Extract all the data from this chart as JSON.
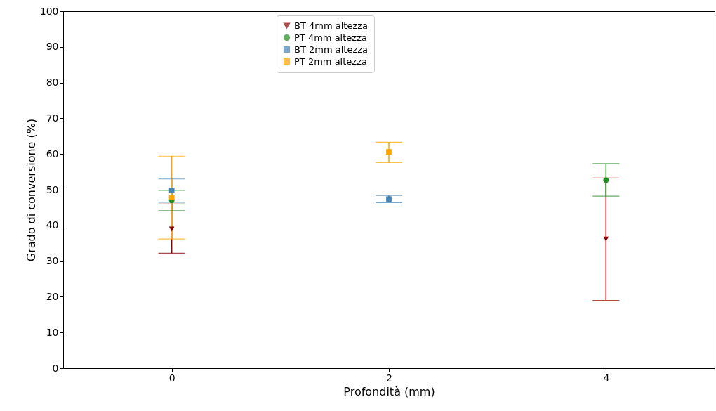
{
  "chart_data": {
    "type": "scatter",
    "xlabel": "Profondità (mm)",
    "ylabel": "Grado di conversione (%)",
    "xlim": [
      -1,
      5
    ],
    "xticks": [
      0,
      2,
      4
    ],
    "ylim": [
      0,
      100
    ],
    "yticks": [
      0,
      10,
      20,
      30,
      40,
      50,
      60,
      70,
      80,
      90,
      100
    ],
    "grid": false,
    "legend": "top",
    "series": [
      {
        "name": "BT 4mm altezza",
        "color": "#8b0000",
        "marker": "triangle",
        "x": [
          0,
          4
        ],
        "values": [
          39,
          36.2
        ],
        "errors": [
          [
            32.2,
            46.0
          ],
          [
            19,
            53.3
          ]
        ]
      },
      {
        "name": "PT 4mm altezza",
        "color": "#228b22",
        "marker": "circle",
        "x": [
          0,
          4
        ],
        "values": [
          47,
          52.7
        ],
        "errors": [
          [
            44.1,
            49.8
          ],
          [
            48.2,
            57.3
          ]
        ]
      },
      {
        "name": "BT 2mm altezza",
        "color": "#4682b4",
        "marker": "square",
        "x": [
          0,
          2
        ],
        "values": [
          49.8,
          47.4
        ],
        "errors": [
          [
            46.5,
            53.0
          ],
          [
            46.4,
            48.4
          ]
        ]
      },
      {
        "name": "PT 2mm altezza",
        "color": "#ffa500",
        "marker": "square",
        "x": [
          0,
          2
        ],
        "values": [
          47.8,
          60.6
        ],
        "errors": [
          [
            36.2,
            59.4
          ],
          [
            57.6,
            63.3
          ]
        ]
      }
    ]
  }
}
